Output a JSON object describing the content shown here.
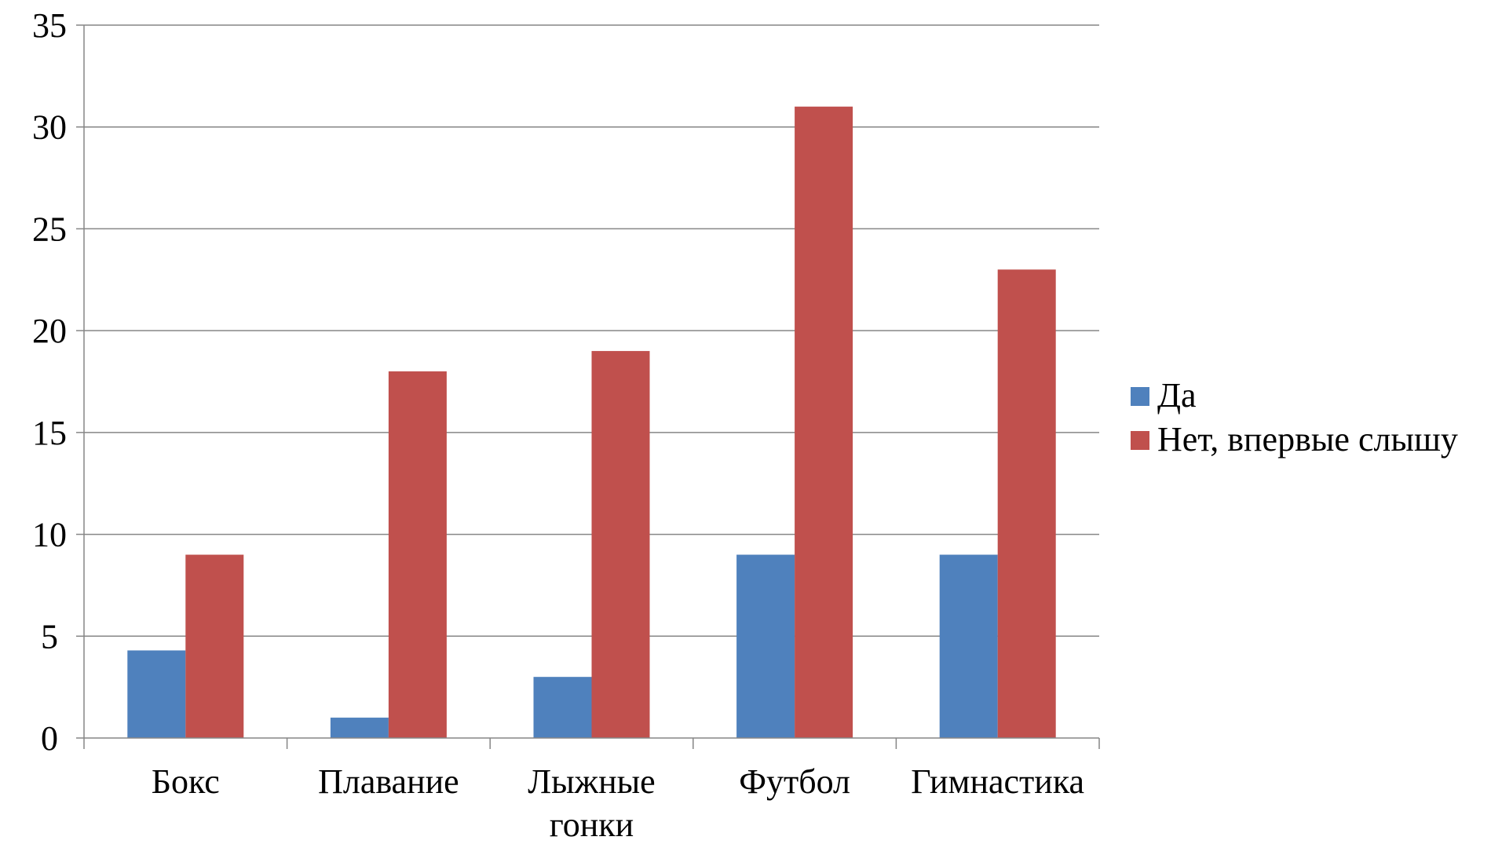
{
  "chart_data": {
    "type": "bar",
    "title": "",
    "xlabel": "",
    "ylabel": "",
    "categories": [
      [
        "Бокс"
      ],
      [
        "Плавание"
      ],
      [
        "Лыжные",
        "гонки"
      ],
      [
        "Футбол"
      ],
      [
        "Гимнастика"
      ]
    ],
    "series": [
      {
        "name": "Да",
        "color": "#4F81BD",
        "values": [
          4.3,
          1,
          3,
          9,
          9
        ]
      },
      {
        "name": "Нет, впервые слышу",
        "color": "#C0504D",
        "values": [
          9,
          18,
          19,
          31,
          23
        ]
      }
    ],
    "ylim": [
      0,
      35
    ],
    "yticks": [
      0,
      5,
      10,
      15,
      20,
      25,
      30,
      35
    ],
    "grid": true,
    "legend_position": "right"
  }
}
